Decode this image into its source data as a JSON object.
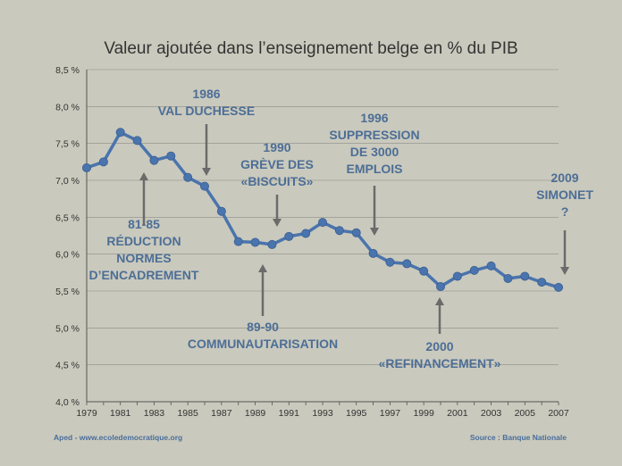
{
  "colors": {
    "background": "#c9c9bd",
    "line": "#4a74ad",
    "annotation": "#4d6e96",
    "arrow": "#6b6b6b",
    "grid": "#8f8f88",
    "text": "#333333"
  },
  "chart_data": {
    "type": "line",
    "title": "Valeur ajoutée dans l’enseignement belge en % du PIB",
    "x": [
      1979,
      1980,
      1981,
      1982,
      1983,
      1984,
      1985,
      1986,
      1987,
      1988,
      1989,
      1990,
      1991,
      1992,
      1993,
      1994,
      1995,
      1996,
      1997,
      1998,
      1999,
      2000,
      2001,
      2002,
      2003,
      2004,
      2005,
      2006,
      2007
    ],
    "series": [
      {
        "values": [
          7.17,
          7.25,
          7.65,
          7.54,
          7.27,
          7.33,
          7.04,
          6.92,
          6.58,
          6.17,
          6.16,
          6.13,
          6.24,
          6.28,
          6.43,
          6.32,
          6.29,
          6.01,
          5.89,
          5.87,
          5.77,
          5.56,
          5.7,
          5.78,
          5.84,
          5.67,
          5.7,
          5.62,
          5.55
        ]
      }
    ],
    "x_tick_labels": [
      "1979",
      "1981",
      "1983",
      "1985",
      "1987",
      "1989",
      "1991",
      "1993",
      "1995",
      "1997",
      "1999",
      "2001",
      "2003",
      "2005",
      "2007"
    ],
    "y_tick_labels": [
      "4,0 %",
      "4,5 %",
      "5,0 %",
      "5,5 %",
      "6,0 %",
      "6,5 %",
      "7,0 %",
      "7,5 %",
      "8,0 %",
      "8,5 %"
    ],
    "y_ticks": [
      4.0,
      4.5,
      5.0,
      5.5,
      6.0,
      6.5,
      7.0,
      7.5,
      8.0,
      8.5
    ],
    "xlim": [
      1979,
      2007
    ],
    "ylim": [
      4.0,
      8.5
    ],
    "grid": true,
    "annotations": [
      {
        "lines": [
          "1986",
          "VAL DUCHESSE"
        ],
        "year": 1986,
        "arrow": "down"
      },
      {
        "lines": [
          "81-85",
          "RÉDUCTION",
          "NORMES",
          "D’ENCADREMENT"
        ],
        "year": 1982,
        "arrow": "up"
      },
      {
        "lines": [
          "1990",
          "GRÈVE DES",
          "«BISCUITS»"
        ],
        "year": 1990,
        "arrow": "down"
      },
      {
        "lines": [
          "1996",
          "SUPPRESSION",
          "DE 3000",
          "EMPLOIS"
        ],
        "year": 1996,
        "arrow": "down"
      },
      {
        "lines": [
          "89-90",
          "COMMUNAUTARISATION"
        ],
        "year": 1989.5,
        "arrow": "up"
      },
      {
        "lines": [
          "2000",
          "«REFINANCEMENT»"
        ],
        "year": 2000,
        "arrow": "up"
      },
      {
        "lines": [
          "2009",
          "SIMONET",
          "?"
        ],
        "year": 2007.5,
        "arrow": "down"
      }
    ]
  },
  "footer": {
    "left": "Aped - www.ecoledemocratique.org",
    "right": "Source : Banque Nationale"
  }
}
